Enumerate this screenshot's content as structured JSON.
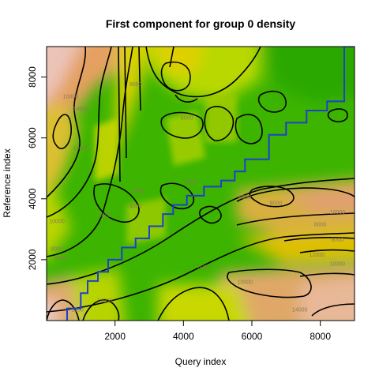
{
  "chart_data": {
    "type": "heatmap",
    "title": "First component for group 0  density",
    "xlabel": "Query index",
    "ylabel": "Reference index",
    "xlim": [
      0,
      9000
    ],
    "ylim": [
      0,
      9000
    ],
    "x_ticks": [
      2000,
      4000,
      6000,
      8000
    ],
    "y_ticks": [
      2000,
      4000,
      6000,
      8000
    ],
    "x_tick_labels": [
      "2000",
      "4000",
      "6000",
      "8000"
    ],
    "y_tick_labels": [
      "2000",
      "4000",
      "6000",
      "8000"
    ],
    "colorscale": [
      "#19a800",
      "#6cc400",
      "#d6e000",
      "#e0b040",
      "#e0a070",
      "#ecc8c0"
    ],
    "contour_labels": [
      {
        "text": "10000",
        "x": 700,
        "y": 7300
      },
      {
        "text": "14000",
        "x": 1000,
        "y": 6900
      },
      {
        "text": "12000",
        "x": 1000,
        "y": 5600
      },
      {
        "text": "10000",
        "x": 300,
        "y": 3200
      },
      {
        "text": "8000",
        "x": 300,
        "y": 2300
      },
      {
        "text": "6000",
        "x": 1700,
        "y": 3400
      },
      {
        "text": "4000",
        "x": 2600,
        "y": 3700
      },
      {
        "text": "6000",
        "x": 2600,
        "y": 7700
      },
      {
        "text": "4000",
        "x": 2700,
        "y": 4200
      },
      {
        "text": "4000",
        "x": 4200,
        "y": 4500
      },
      {
        "text": "6000",
        "x": 4100,
        "y": 6600
      },
      {
        "text": "6000",
        "x": 5800,
        "y": 4000
      },
      {
        "text": "8000",
        "x": 6700,
        "y": 3800
      },
      {
        "text": "10000",
        "x": 8500,
        "y": 3500
      },
      {
        "text": "8000",
        "x": 8000,
        "y": 3100
      },
      {
        "text": "8000",
        "x": 8500,
        "y": 2600
      },
      {
        "text": "12000",
        "x": 7900,
        "y": 2100
      },
      {
        "text": "10000",
        "x": 8500,
        "y": 1800
      },
      {
        "text": "6000",
        "x": 4600,
        "y": 1700
      },
      {
        "text": "10000",
        "x": 5800,
        "y": 1200
      },
      {
        "text": "14000",
        "x": 7400,
        "y": 300
      },
      {
        "text": "14000",
        "x": 1700,
        "y": 600
      },
      {
        "text": "8000",
        "x": 400,
        "y": 2000
      },
      {
        "text": "1200",
        "x": 900,
        "y": 300
      }
    ],
    "warping_path": {
      "name": "",
      "color": "#1f3fd0",
      "x": [
        600,
        600,
        1000,
        1000,
        1200,
        1200,
        1500,
        1500,
        1800,
        1800,
        2200,
        2200,
        2600,
        2600,
        3000,
        3000,
        3400,
        3400,
        3700,
        3700,
        4100,
        4100,
        4600,
        4600,
        5100,
        5100,
        5500,
        5500,
        5800,
        5800,
        6500,
        6500,
        7000,
        7000,
        7600,
        7600,
        8200,
        8200,
        8700,
        8700,
        9000
      ],
      "y": [
        0,
        400,
        400,
        900,
        900,
        1300,
        1300,
        1600,
        1600,
        2000,
        2000,
        2400,
        2400,
        2700,
        2700,
        3100,
        3100,
        3500,
        3500,
        3800,
        3800,
        4100,
        4100,
        4400,
        4400,
        4600,
        4600,
        4900,
        4900,
        5300,
        5300,
        6100,
        6100,
        6500,
        6500,
        6900,
        6900,
        7200,
        7200,
        9000,
        9000
      ]
    }
  }
}
